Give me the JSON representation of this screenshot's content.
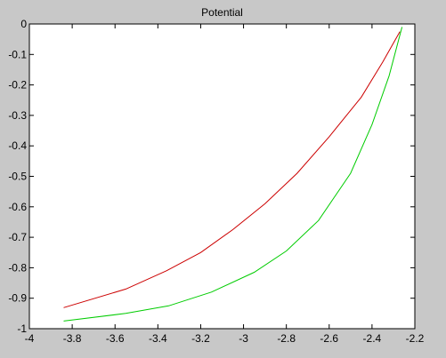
{
  "chart_data": {
    "type": "line",
    "title": "Potential",
    "xlabel": "",
    "ylabel": "",
    "xlim": [
      -4,
      -2.2
    ],
    "ylim": [
      -1,
      0
    ],
    "x_ticks": [
      -4,
      -3.8,
      -3.6,
      -3.4,
      -3.2,
      -3,
      -2.8,
      -2.6,
      -2.4,
      -2.2
    ],
    "x_tick_labels": [
      "-4",
      "-3.8",
      "-3.6",
      "-3.4",
      "-3.2",
      "-3",
      "-2.8",
      "-2.6",
      "-2.4",
      "-2.2"
    ],
    "y_ticks": [
      0,
      -0.1,
      -0.2,
      -0.3,
      -0.4,
      -0.5,
      -0.6,
      -0.7,
      -0.8,
      -0.9,
      -1
    ],
    "y_tick_labels": [
      "0",
      "-0.1",
      "-0.2",
      "-0.3",
      "-0.4",
      "-0.5",
      "-0.6",
      "-0.7",
      "-0.8",
      "-0.9",
      "-1"
    ],
    "grid": false,
    "background": "#c8c8c8",
    "plot_background": "#ffffff",
    "series": [
      {
        "color": "#cc0000",
        "x": [
          -3.84,
          -3.55,
          -3.36,
          -3.2,
          -3.05,
          -2.9,
          -2.75,
          -2.6,
          -2.45,
          -2.35,
          -2.27
        ],
        "y": [
          -0.931,
          -0.87,
          -0.81,
          -0.75,
          -0.675,
          -0.59,
          -0.49,
          -0.37,
          -0.24,
          -0.125,
          -0.025
        ]
      },
      {
        "color": "#00cc00",
        "x": [
          -3.84,
          -3.55,
          -3.35,
          -3.15,
          -2.95,
          -2.8,
          -2.65,
          -2.5,
          -2.4,
          -2.32,
          -2.26
        ],
        "y": [
          -0.975,
          -0.95,
          -0.925,
          -0.88,
          -0.815,
          -0.745,
          -0.645,
          -0.49,
          -0.33,
          -0.17,
          -0.01
        ]
      }
    ]
  }
}
